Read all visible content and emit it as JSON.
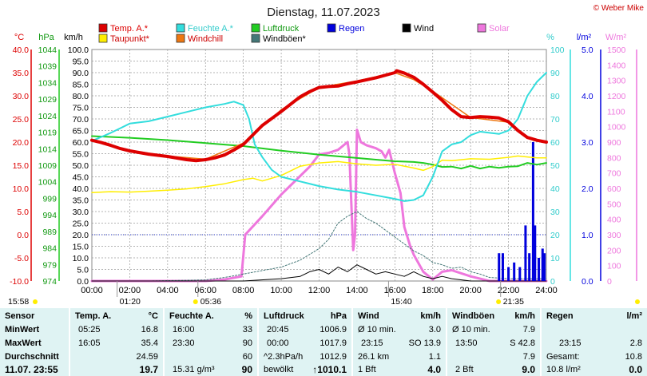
{
  "header": {
    "title": "Dienstag, 11.07.2023",
    "copyright": "© Weber Mike"
  },
  "legend": [
    {
      "label": "Temp. A.*",
      "color": "#dd0000"
    },
    {
      "label": "Taupunkt*",
      "color": "#ffee00"
    },
    {
      "label": "Feuchte A.*",
      "color": "#33dddd"
    },
    {
      "label": "Windchill",
      "color": "#ee7711"
    },
    {
      "label": "Luftdruck",
      "color": "#22cc22"
    },
    {
      "label": "Windböen*",
      "color": "#447777"
    },
    {
      "label": "Regen",
      "color": "#0000dd"
    },
    {
      "label": "Wind",
      "color": "#000000"
    },
    {
      "label": "Solar",
      "color": "#ee77dd"
    }
  ],
  "axis_units": {
    "temp": "°C",
    "pressure": "hPa",
    "wind": "km/h",
    "humidity": "%",
    "rain": "l/m²",
    "solar": "W/m²"
  },
  "chart_data": {
    "type": "line",
    "x_ticks": [
      "00:00",
      "02:00",
      "04:00",
      "06:00",
      "08:00",
      "10:00",
      "12:00",
      "14:00",
      "16:00",
      "18:00",
      "20:00",
      "22:00",
      "24:00"
    ],
    "y_axes": {
      "temp": {
        "ticks": [
          "40.0",
          "35.0",
          "30.0",
          "25.0",
          "20.0",
          "15.0",
          "10.0",
          "5.0",
          "0.0",
          "-5.0",
          "-10.0"
        ],
        "range": [
          -10,
          40
        ]
      },
      "pressure": {
        "ticks": [
          "1044",
          "1039",
          "1034",
          "1029",
          "1024",
          "1019",
          "1014",
          "1009",
          "1004",
          "999",
          "994",
          "989",
          "984",
          "979",
          "974"
        ],
        "range": [
          974,
          1044
        ]
      },
      "wind": {
        "ticks": [
          "100.0",
          "95.0",
          "90.0",
          "85.0",
          "80.0",
          "75.0",
          "70.0",
          "65.0",
          "60.0",
          "55.0",
          "50.0",
          "45.0",
          "40.0",
          "35.0",
          "30.0",
          "25.0",
          "20.0",
          "15.0",
          "10.0",
          "5.0",
          "0.0"
        ],
        "range": [
          0,
          100
        ]
      },
      "humidity": {
        "ticks": [
          "100",
          "90",
          "80",
          "70",
          "60",
          "50",
          "40",
          "30",
          "20",
          "10",
          "0"
        ],
        "range": [
          0,
          100
        ]
      },
      "rain": {
        "ticks": [
          "5.0",
          "4.0",
          "3.0",
          "2.0",
          "1.0",
          "0.0"
        ],
        "range": [
          0,
          5
        ]
      },
      "solar": {
        "ticks": [
          "1500",
          "1400",
          "1300",
          "1200",
          "1100",
          "1000",
          "900",
          "800",
          "700",
          "600",
          "500",
          "400",
          "300",
          "200",
          "100",
          "0"
        ],
        "range": [
          0,
          1500
        ]
      }
    },
    "series": [
      {
        "name": "Temp. A.*",
        "axis": "temp",
        "color": "#dd0000",
        "width": 4,
        "x": [
          0,
          0.5,
          1,
          1.5,
          2,
          3,
          4,
          5,
          5.5,
          6,
          6.5,
          7,
          7.5,
          8,
          9,
          10,
          11,
          11.5,
          12,
          12.5,
          13,
          13.5,
          14,
          15,
          16,
          16.1,
          16.5,
          17,
          17.5,
          18,
          18.5,
          19,
          19.5,
          20,
          20.5,
          21,
          21.5,
          22,
          22.5,
          23,
          23.5,
          24
        ],
        "y": [
          20.4,
          19.9,
          19.3,
          18.6,
          18.1,
          17.4,
          16.9,
          16.2,
          16.0,
          16.2,
          16.6,
          17.2,
          18.3,
          19.5,
          23.6,
          26.6,
          29.8,
          30.9,
          31.8,
          32.0,
          32.1,
          32.6,
          33.0,
          33.9,
          35.0,
          35.4,
          34.9,
          34.0,
          32.5,
          30.8,
          29.0,
          27.0,
          25.5,
          25.3,
          25.5,
          25.4,
          25.2,
          24.4,
          22.5,
          21.0,
          20.4,
          20.0
        ]
      },
      {
        "name": "Windchill",
        "axis": "temp",
        "color": "#ee7711",
        "width": 1.5,
        "x": [
          0,
          2,
          4,
          6,
          8,
          10,
          12,
          14,
          16,
          17,
          18,
          20,
          22,
          23,
          24
        ],
        "y": [
          20.5,
          18.2,
          17.0,
          16.3,
          19.8,
          27.0,
          31.8,
          33.2,
          35.0,
          33.5,
          31.0,
          25.3,
          24.3,
          20.9,
          20.1
        ]
      },
      {
        "name": "Taupunkt*",
        "axis": "temp",
        "color": "#ffee00",
        "width": 1.5,
        "x": [
          0,
          1,
          2,
          3,
          4,
          5,
          6,
          7,
          8,
          8.5,
          9,
          10,
          11,
          12,
          13,
          14,
          15,
          16,
          17,
          17.5,
          18,
          18.5,
          19,
          20,
          21,
          22,
          22.5,
          23,
          23.5,
          24
        ],
        "y": [
          9.1,
          9.3,
          9.2,
          9.4,
          9.6,
          9.9,
          10.4,
          11.0,
          11.9,
          12.2,
          11.6,
          12.8,
          14.8,
          15.5,
          15.8,
          15.3,
          15.0,
          15.2,
          14.4,
          13.9,
          14.7,
          16.1,
          16.0,
          16.4,
          16.3,
          16.7,
          17.0,
          16.8,
          16.6,
          16.6
        ]
      },
      {
        "name": "Feuchte A.*",
        "axis": "humidity",
        "color": "#33dddd",
        "width": 2,
        "x": [
          0,
          1,
          1.5,
          2,
          3,
          4,
          5,
          6,
          7,
          7.5,
          8,
          8.3,
          8.6,
          9,
          9.5,
          10,
          11,
          12,
          13,
          14,
          15,
          16,
          16.5,
          17,
          17.5,
          18,
          18.5,
          19,
          19.5,
          20,
          20.5,
          21,
          21.5,
          22,
          22.5,
          23,
          23.5,
          24
        ],
        "y": [
          60.5,
          64.0,
          66.0,
          68.0,
          69.0,
          71.0,
          73.0,
          75.0,
          76.5,
          77.5,
          76.0,
          70.0,
          59.0,
          53.5,
          48.0,
          45.0,
          43.0,
          41.0,
          39.5,
          38.5,
          37.0,
          35.5,
          34.5,
          35.0,
          37.0,
          45.0,
          56.0,
          59.0,
          60.0,
          63.0,
          64.5,
          64.0,
          63.5,
          65.0,
          70.0,
          80.0,
          86.0,
          90.0
        ]
      },
      {
        "name": "Luftdruck",
        "axis": "pressure",
        "color": "#22cc22",
        "width": 2,
        "x": [
          0,
          2,
          4,
          6,
          8,
          10,
          12,
          14,
          15,
          16,
          17,
          17.5,
          18,
          18.5,
          19,
          19.5,
          20,
          20.5,
          21,
          21.5,
          22,
          22.5,
          23,
          23.5,
          24
        ],
        "y": [
          1017.8,
          1017.3,
          1016.6,
          1015.7,
          1014.8,
          1013.4,
          1012.2,
          1011.2,
          1010.7,
          1010.2,
          1010.0,
          1009.7,
          1009.2,
          1008.5,
          1008.6,
          1008.0,
          1008.8,
          1008.0,
          1008.6,
          1008.2,
          1008.6,
          1008.7,
          1009.7,
          1009.2,
          1009.7
        ]
      },
      {
        "name": "Windböen*",
        "axis": "wind",
        "color": "#447777",
        "width": 1,
        "dash": "2,2",
        "x": [
          0,
          3,
          6,
          7,
          8,
          9,
          10,
          11,
          12,
          12.5,
          13,
          13.5,
          14,
          14.5,
          15,
          15.5,
          16,
          16.5,
          17,
          17.5,
          18,
          18.5,
          19,
          19.5,
          20,
          20.5,
          21,
          22,
          23,
          24
        ],
        "y": [
          0,
          0,
          0.5,
          1.5,
          3,
          4.5,
          6,
          9,
          14,
          18,
          25,
          28,
          30,
          27,
          25,
          22,
          19,
          16,
          13,
          11,
          8,
          7,
          5.5,
          6,
          4,
          3,
          1.5,
          1,
          1,
          1
        ]
      },
      {
        "name": "Wind",
        "axis": "wind",
        "color": "#000000",
        "width": 1,
        "x": [
          0,
          6,
          8,
          10,
          11,
          11.5,
          12,
          12.5,
          13,
          13.5,
          14,
          14.5,
          15,
          15.5,
          16,
          16.5,
          17,
          17.5,
          18,
          18.5,
          19,
          20,
          24
        ],
        "y": [
          0,
          0,
          0,
          1,
          2,
          4,
          5,
          3,
          6,
          4,
          7,
          5,
          3,
          4,
          3,
          2,
          4,
          2,
          1,
          2,
          1,
          0,
          0
        ]
      },
      {
        "name": "Solar",
        "axis": "solar",
        "color": "#ee77dd",
        "width": 3,
        "x": [
          0,
          5,
          6,
          7,
          7.9,
          8.1,
          9,
          10,
          11,
          11.5,
          12,
          12.5,
          13,
          13.3,
          13.5,
          13.6,
          13.8,
          13.9,
          14,
          14.2,
          14.5,
          15,
          15.3,
          15.5,
          15.7,
          16,
          16.3,
          16.5,
          16.8,
          17,
          17.5,
          18,
          18.5,
          19,
          20,
          21,
          22,
          24
        ],
        "y": [
          0,
          0,
          0,
          10,
          30,
          300,
          420,
          560,
          680,
          740,
          820,
          830,
          850,
          880,
          900,
          820,
          200,
          300,
          980,
          900,
          880,
          860,
          840,
          800,
          850,
          700,
          570,
          350,
          230,
          170,
          60,
          10,
          60,
          70,
          30,
          0,
          0,
          0
        ]
      },
      {
        "name": "Regen",
        "axis": "rain",
        "color": "#0000dd",
        "type": "bars",
        "x": [
          21.5,
          21.7,
          22.0,
          22.3,
          22.6,
          22.9,
          23.1,
          23.3,
          23.4,
          23.6,
          23.8,
          23.9
        ],
        "y": [
          0.6,
          0.6,
          0.3,
          0.4,
          0.3,
          1.2,
          0.6,
          3.0,
          1.2,
          0.5,
          0.7,
          0.6
        ]
      }
    ],
    "markers": [
      {
        "x": "01:20",
        "label": "01:20"
      },
      {
        "x": "05:36",
        "label": "05:36"
      },
      {
        "x": "15:40",
        "label": "15:40"
      },
      {
        "x": "21:35",
        "label": "21:35"
      }
    ],
    "marker_left": "15:58"
  },
  "stats": {
    "rows": [
      "Sensor",
      "MinWert",
      "MaxWert",
      "Durchschnitt",
      "11.07. 23:55"
    ],
    "temp": {
      "title": "Temp. A.",
      "unit": "°C",
      "min_time": "05:25",
      "min": "16.8",
      "max_time": "16:05",
      "max": "35.4",
      "avg": "24.59",
      "now": "19.7"
    },
    "humidity": {
      "title": "Feuchte A.",
      "unit": "%",
      "min_time": "16:00",
      "min": "33",
      "max_time": "23:30",
      "max": "90",
      "avg": "60",
      "abs": "15.31 g/m³",
      "now": "90"
    },
    "pressure": {
      "title": "Luftdruck",
      "unit": "hPa",
      "min_time": "20:45",
      "min": "1006.9",
      "max_time": "00:00",
      "max": "1017.9",
      "trend_label": "^2.3hPa/h",
      "avg": "1012.9",
      "weather": "bewölkt",
      "now": "↑1010.1"
    },
    "wind": {
      "title": "Wind",
      "unit": "km/h",
      "r1_label": "Ø 10 min.",
      "r1_val": "3.0",
      "r2_time": "23:15",
      "r2_dir": "SO 13.9",
      "r3_label": "26.1 km",
      "r3_val": "1.1",
      "bft": "1 Bft",
      "now": "4.0"
    },
    "gusts": {
      "title": "Windböen",
      "unit": "km/h",
      "r1_label": "Ø 10 min.",
      "r1_val": "7.9",
      "r2_time": "13:50",
      "r2_dir": "S 42.8",
      "avg": "7.9",
      "bft": "2 Bft",
      "now": "9.0"
    },
    "rain": {
      "title": "Regen",
      "unit": "l/m²",
      "r2_time": "23:15",
      "r2_val": "2.8",
      "total_label": "Gesamt:",
      "total": "10.8",
      "rate": "10.8 l/m²",
      "now": "0.0"
    }
  }
}
